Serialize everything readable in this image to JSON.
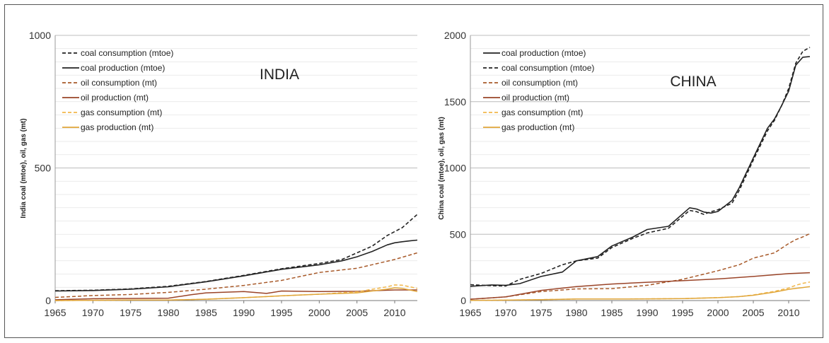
{
  "chart_data": [
    {
      "type": "line",
      "title": "INDIA",
      "ylabel": "India coal (mtoe), oil, gas (mt)",
      "xlabel": "",
      "xlim": [
        1965,
        2013
      ],
      "ylim": [
        0,
        1000
      ],
      "y_ticks": [
        0,
        500,
        1000
      ],
      "x_ticks": [
        1965,
        1970,
        1975,
        1980,
        1985,
        1990,
        1995,
        2000,
        2005,
        2010
      ],
      "grid": true,
      "legend": "top-left",
      "series": [
        {
          "name": "coal consumption (mtoe)",
          "color": "#222222",
          "dash": "dashed",
          "x": [
            1965,
            1970,
            1975,
            1980,
            1985,
            1990,
            1995,
            2000,
            2003,
            2005,
            2007,
            2009,
            2010,
            2011,
            2012,
            2013
          ],
          "values": [
            37,
            39,
            44,
            54,
            72,
            95,
            120,
            140,
            155,
            180,
            205,
            245,
            260,
            275,
            300,
            325
          ]
        },
        {
          "name": "coal production (mtoe)",
          "color": "#222222",
          "dash": "solid",
          "x": [
            1965,
            1970,
            1975,
            1980,
            1985,
            1990,
            1995,
            2000,
            2003,
            2005,
            2007,
            2009,
            2010,
            2011,
            2012,
            2013
          ],
          "values": [
            36,
            38,
            43,
            52,
            71,
            93,
            118,
            135,
            150,
            165,
            185,
            210,
            218,
            222,
            225,
            228
          ]
        },
        {
          "name": "oil consumption (mt)",
          "color": "#a85a2a",
          "dash": "dashed",
          "x": [
            1965,
            1970,
            1975,
            1980,
            1985,
            1990,
            1995,
            2000,
            2005,
            2010,
            2013
          ],
          "values": [
            12,
            19,
            23,
            31,
            43,
            57,
            76,
            106,
            122,
            155,
            180
          ]
        },
        {
          "name": "oil production (mt)",
          "color": "#9a4428",
          "dash": "solid",
          "x": [
            1965,
            1970,
            1975,
            1980,
            1983,
            1985,
            1990,
            1993,
            1995,
            2000,
            2005,
            2010,
            2013
          ],
          "values": [
            3,
            7,
            8,
            9,
            22,
            29,
            34,
            27,
            36,
            34,
            35,
            40,
            40
          ]
        },
        {
          "name": "gas consumption (mt)",
          "color": "#f2b84b",
          "dash": "dashed",
          "x": [
            1965,
            1970,
            1975,
            1980,
            1985,
            1990,
            1995,
            2000,
            2005,
            2009,
            2010,
            2011,
            2012,
            2013
          ],
          "values": [
            0,
            1,
            2,
            2,
            5,
            11,
            18,
            24,
            33,
            52,
            59,
            58,
            52,
            46
          ]
        },
        {
          "name": "gas production (mt)",
          "color": "#e0a63a",
          "dash": "solid",
          "x": [
            1965,
            1970,
            1975,
            1980,
            1985,
            1990,
            1995,
            2000,
            2005,
            2009,
            2010,
            2011,
            2012,
            2013
          ],
          "values": [
            0,
            1,
            2,
            2,
            5,
            11,
            18,
            24,
            29,
            43,
            48,
            46,
            40,
            34
          ]
        }
      ]
    },
    {
      "type": "line",
      "title": "CHINA",
      "ylabel": "China coal (mtoe), oil, gas (mt)",
      "xlabel": "",
      "xlim": [
        1965,
        2013
      ],
      "ylim": [
        0,
        2000
      ],
      "y_ticks": [
        0,
        500,
        1000,
        1500,
        2000
      ],
      "x_ticks": [
        1965,
        1970,
        1975,
        1980,
        1985,
        1990,
        1995,
        2000,
        2005,
        2010
      ],
      "grid": true,
      "legend": "top-left",
      "series": [
        {
          "name": "coal production (mtoe)",
          "color": "#222222",
          "dash": "solid",
          "x": [
            1965,
            1968,
            1970,
            1972,
            1975,
            1978,
            1980,
            1983,
            1985,
            1988,
            1990,
            1993,
            1996,
            1997,
            1998,
            1999,
            2000,
            2002,
            2003,
            2005,
            2007,
            2008,
            2009,
            2010,
            2011,
            2012,
            2013
          ],
          "values": [
            108,
            118,
            115,
            128,
            182,
            215,
            300,
            332,
            412,
            480,
            536,
            560,
            700,
            690,
            668,
            660,
            672,
            755,
            850,
            1075,
            1300,
            1370,
            1470,
            1580,
            1775,
            1835,
            1840
          ]
        },
        {
          "name": "coal consumption (mtoe)",
          "color": "#222222",
          "dash": "dashed",
          "x": [
            1965,
            1968,
            1970,
            1972,
            1975,
            1978,
            1980,
            1983,
            1985,
            1988,
            1990,
            1993,
            1996,
            1997,
            1998,
            1999,
            2000,
            2002,
            2003,
            2005,
            2007,
            2008,
            2009,
            2010,
            2011,
            2012,
            2013
          ],
          "values": [
            120,
            112,
            110,
            160,
            205,
            270,
            300,
            320,
            400,
            470,
            510,
            545,
            680,
            670,
            650,
            670,
            685,
            735,
            830,
            1060,
            1280,
            1360,
            1470,
            1600,
            1790,
            1880,
            1910
          ]
        },
        {
          "name": "oil consumption (mt)",
          "color": "#a85a2a",
          "dash": "dashed",
          "x": [
            1965,
            1970,
            1975,
            1980,
            1985,
            1990,
            1995,
            2000,
            2003,
            2005,
            2008,
            2010,
            2011,
            2012,
            2013
          ],
          "values": [
            10,
            28,
            68,
            88,
            90,
            115,
            160,
            225,
            270,
            320,
            360,
            430,
            460,
            480,
            505
          ]
        },
        {
          "name": "oil production (mt)",
          "color": "#9a4428",
          "dash": "solid",
          "x": [
            1965,
            1970,
            1975,
            1980,
            1985,
            1990,
            1995,
            2000,
            2005,
            2010,
            2013
          ],
          "values": [
            10,
            28,
            77,
            105,
            125,
            138,
            150,
            163,
            182,
            203,
            210
          ]
        },
        {
          "name": "gas consumption (mt)",
          "color": "#f2b84b",
          "dash": "dashed",
          "x": [
            1965,
            1970,
            1975,
            1980,
            1985,
            1990,
            1995,
            2000,
            2003,
            2005,
            2008,
            2010,
            2011,
            2012,
            2013
          ],
          "values": [
            1,
            3,
            7,
            12,
            12,
            13,
            15,
            22,
            30,
            42,
            70,
            95,
            115,
            130,
            140
          ]
        },
        {
          "name": "gas production (mt)",
          "color": "#e0a63a",
          "dash": "solid",
          "x": [
            1965,
            1970,
            1975,
            1980,
            1985,
            1990,
            1995,
            2000,
            2003,
            2005,
            2008,
            2010,
            2011,
            2012,
            2013
          ],
          "values": [
            1,
            3,
            7,
            12,
            12,
            13,
            15,
            22,
            30,
            40,
            64,
            85,
            92,
            98,
            105
          ]
        }
      ]
    }
  ]
}
